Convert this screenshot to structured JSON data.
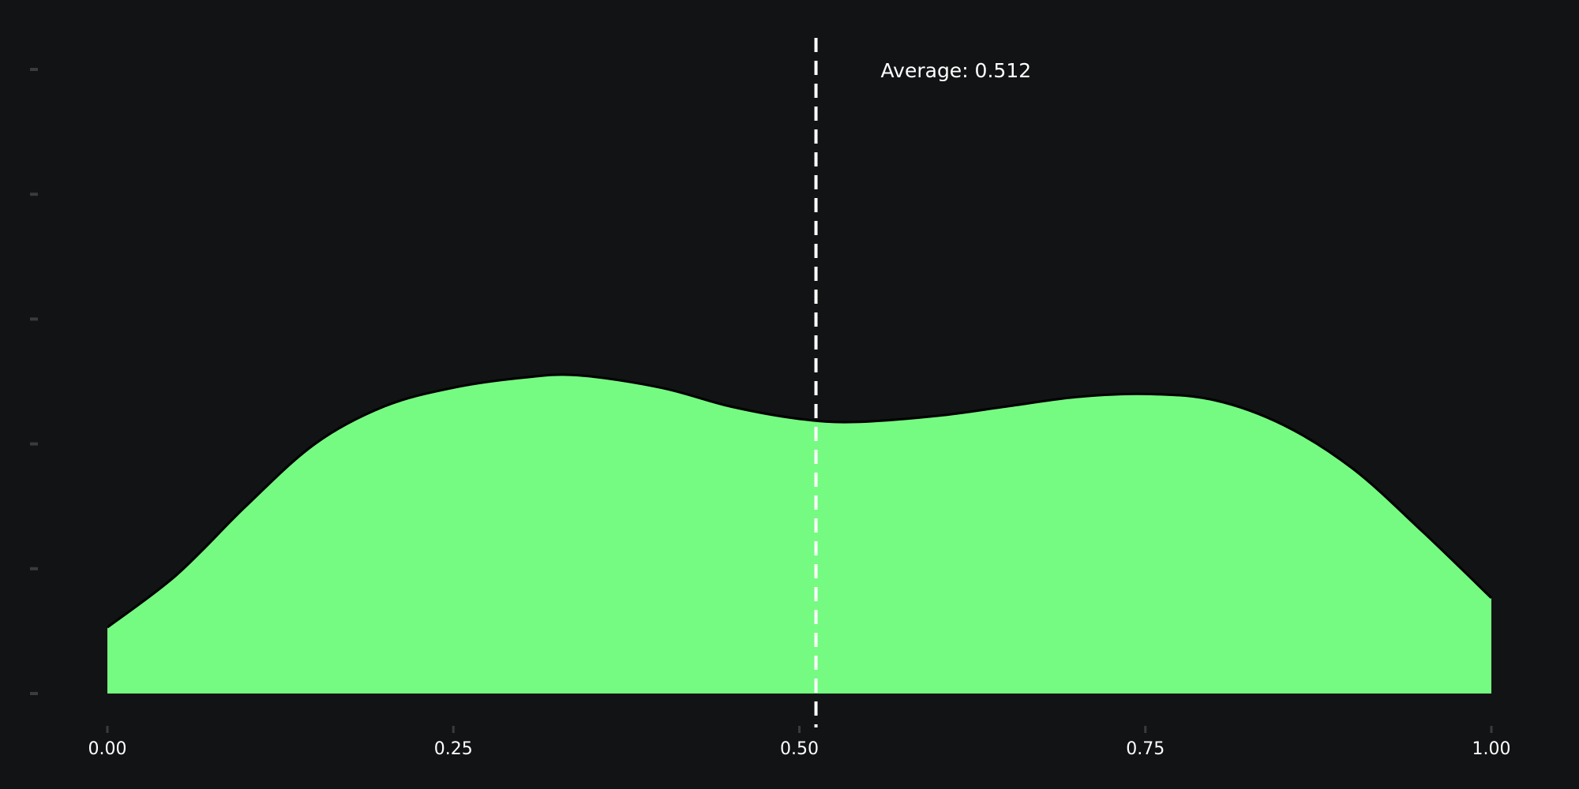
{
  "chart_data": {
    "type": "area",
    "title": "",
    "xlabel": "",
    "ylabel": "",
    "xlim": [
      0,
      1
    ],
    "ylim": [
      0,
      1
    ],
    "grid": false,
    "x_ticks": [
      "0.00",
      "0.25",
      "0.50",
      "0.75",
      "1.00"
    ],
    "y_tick_count": 6,
    "series": [
      {
        "x": [
          0.0,
          0.05,
          0.1,
          0.15,
          0.2,
          0.25,
          0.3,
          0.34,
          0.4,
          0.45,
          0.5,
          0.54,
          0.6,
          0.65,
          0.7,
          0.75,
          0.8,
          0.85,
          0.9,
          0.95,
          1.0
        ],
        "y": [
          0.106,
          0.19,
          0.3,
          0.4,
          0.46,
          0.49,
          0.506,
          0.51,
          0.49,
          0.46,
          0.44,
          0.435,
          0.445,
          0.46,
          0.475,
          0.48,
          0.47,
          0.43,
          0.36,
          0.26,
          0.153
        ]
      }
    ],
    "average": {
      "x": 0.512,
      "label": "Average: 0.512"
    },
    "colors": {
      "fill": "#76fb82",
      "outline": "#000000",
      "background": "#121314",
      "average_line": "#ffffff",
      "tick": "#3a3b3c"
    }
  }
}
